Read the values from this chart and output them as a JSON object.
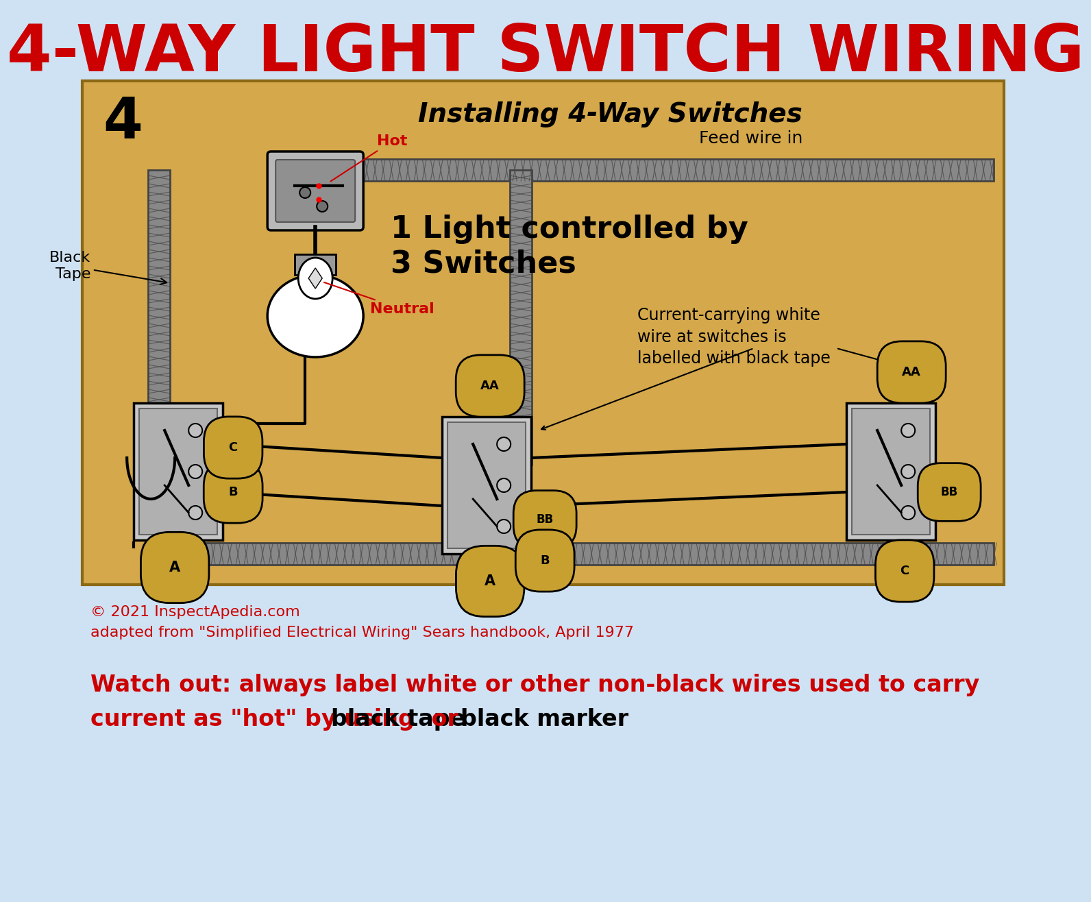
{
  "title": "4-WAY LIGHT SWITCH WIRING",
  "title_color": "#cc0000",
  "title_fontsize": 68,
  "background_color": "#cfe2f3",
  "diagram_bg": "#d4a84b",
  "diagram_border": "#8B6914",
  "diagram_number": "4",
  "diagram_title": "Installing 4-Way Switches",
  "diagram_subtitle": "Feed wire in",
  "diagram_text1": "1 Light controlled by",
  "diagram_text2": "3 Switches",
  "diagram_note": "Current-carrying white\nwire at switches is\nlabelled with black tape",
  "label_hot": "Hot",
  "label_neutral": "Neutral",
  "label_black_tape": "Black\nTape",
  "copyright_line1": "© 2021 InspectApedia.com",
  "copyright_line2": "adapted from \"Simplified Electrical Wiring\" Sears handbook, April 1977",
  "warning_line1": "Watch out: always label white or other non-black wires used to carry",
  "warning_line2": "current as \"hot\" by using ",
  "warning_bold1": "black tape",
  "warning_mid": " or ",
  "warning_bold2": "black marker",
  "warning_color": "#cc0000",
  "warning_black": "#000000",
  "conduit_color": "#888888",
  "conduit_edge": "#444444",
  "wire_black": "#111111",
  "wire_red": "#cc2200",
  "switch_box_color": "#d8d8d8",
  "label_tag_color": "#c8a030"
}
